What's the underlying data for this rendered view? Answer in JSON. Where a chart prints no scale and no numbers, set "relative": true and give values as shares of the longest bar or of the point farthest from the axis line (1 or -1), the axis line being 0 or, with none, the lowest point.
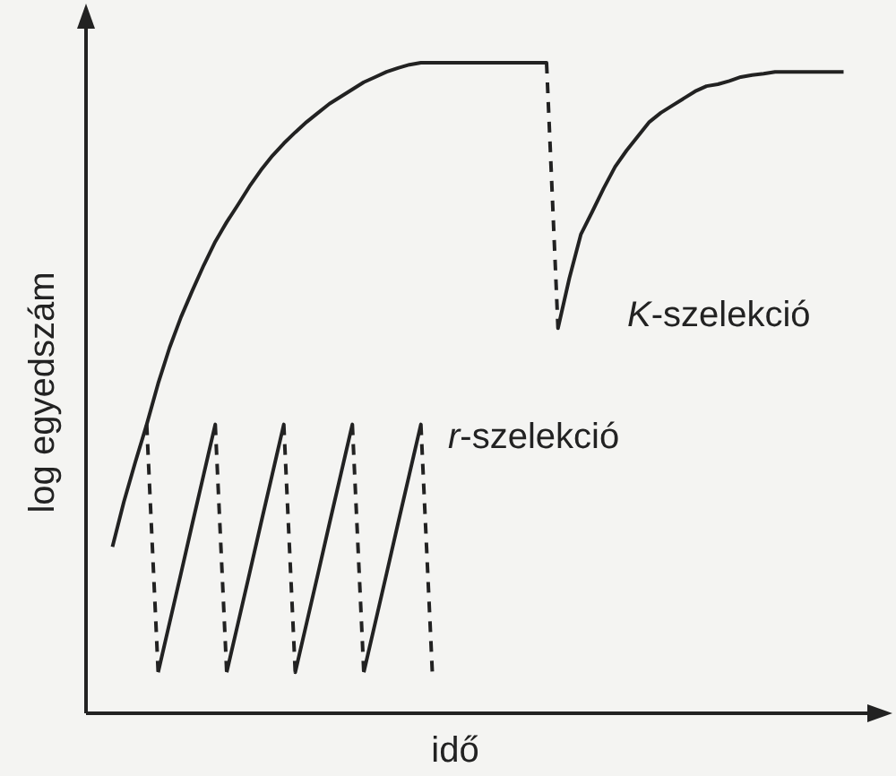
{
  "chart_data": {
    "type": "line",
    "relative": true,
    "xlabel": "idő",
    "ylabel": "log egyedszám",
    "categories": [
      null,
      null,
      null,
      null,
      null,
      null,
      null,
      null,
      null,
      null,
      null,
      null,
      null,
      null,
      null,
      null,
      null,
      null,
      null,
      null,
      null,
      null,
      null,
      null,
      null,
      null,
      null,
      null,
      null,
      null,
      null,
      null,
      null,
      null,
      null,
      null,
      null,
      null,
      null,
      null,
      null,
      null,
      null,
      null,
      null,
      null,
      null,
      null,
      null,
      null,
      null,
      null,
      null,
      null,
      null,
      null,
      null,
      null,
      null,
      null,
      null,
      null,
      null,
      null,
      null,
      null,
      null
    ],
    "series": [
      {
        "name": "K-szelekció",
        "color": "#222222",
        "line_style": "dashed",
        "values": [
          null,
          null,
          0.256,
          0.325,
          0.386,
          0.444,
          0.507,
          0.562,
          0.609,
          0.65,
          0.689,
          0.725,
          0.755,
          0.782,
          0.81,
          0.835,
          0.857,
          0.876,
          0.893,
          0.909,
          0.923,
          0.937,
          0.948,
          0.959,
          0.97,
          0.978,
          0.986,
          0.992,
          0.997,
          1,
          1,
          1,
          1,
          1,
          1,
          1,
          1,
          1,
          1,
          1,
          1,
          0.592,
          0.669,
          0.736,
          0.771,
          0.807,
          0.84,
          0.865,
          0.887,
          0.909,
          0.923,
          0.934,
          0.945,
          0.956,
          0.964,
          0.967,
          0.972,
          0.978,
          0.981,
          0.983,
          0.986,
          0.986,
          0.986,
          0.986,
          0.986,
          0.986,
          0.986
        ]
      },
      {
        "name": "r-szelekció",
        "color": "#222222",
        "line_style": "dashed",
        "values": [
          null,
          null,
          null,
          null,
          null,
          0.444,
          0.063,
          0.139,
          0.215,
          0.292,
          0.368,
          0.444,
          0.063,
          0.139,
          0.215,
          0.292,
          0.368,
          0.444,
          0.063,
          0.139,
          0.215,
          0.292,
          0.368,
          0.444,
          0.063,
          0.139,
          0.215,
          0.292,
          0.368,
          0.444,
          0.063,
          null,
          null,
          null,
          null,
          null,
          null,
          null,
          null,
          null,
          null,
          null,
          null,
          null,
          null,
          null,
          null,
          null,
          null,
          null,
          null,
          null,
          null,
          null,
          null,
          null,
          null,
          null,
          null,
          null,
          null,
          null,
          null,
          null,
          null,
          null,
          null
        ]
      }
    ]
  }
}
